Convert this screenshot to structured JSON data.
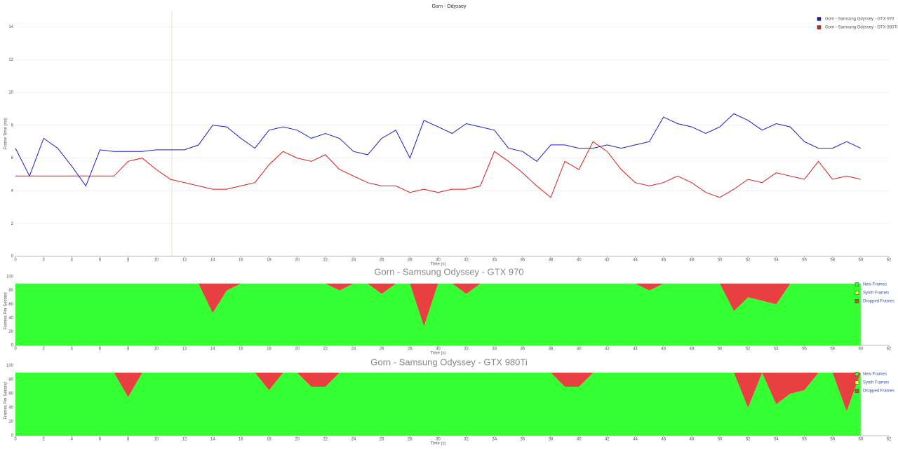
{
  "chart_data": [
    {
      "type": "line",
      "title": "Gorn - Odyssey",
      "x_label": "Time (s)",
      "y_label": "Frame Time (ms)",
      "x": [
        0,
        1,
        2,
        3,
        4,
        5,
        6,
        7,
        8,
        9,
        10,
        11,
        12,
        13,
        14,
        15,
        16,
        17,
        18,
        19,
        20,
        21,
        22,
        23,
        24,
        25,
        26,
        27,
        28,
        29,
        30,
        31,
        32,
        33,
        34,
        35,
        36,
        37,
        38,
        39,
        40,
        41,
        42,
        43,
        44,
        45,
        46,
        47,
        48,
        49,
        50,
        51,
        52,
        53,
        54,
        55,
        56,
        57,
        58,
        59,
        60
      ],
      "series": [
        {
          "name": "Gorn - Samsung Odyssey - GTX 970",
          "color": "#1a1acc",
          "values": [
            6.6,
            4.9,
            7.2,
            6.6,
            5.5,
            4.3,
            6.5,
            6.4,
            6.4,
            6.4,
            6.5,
            6.5,
            6.5,
            6.8,
            8,
            7.9,
            7.2,
            6.6,
            7.7,
            7.9,
            7.7,
            7.2,
            7.5,
            7.2,
            6.4,
            6.2,
            7.2,
            7.7,
            6,
            8.3,
            7.9,
            7.5,
            8.1,
            7.9,
            7.7,
            6.6,
            6.4,
            5.8,
            6.8,
            6.8,
            6.6,
            6.6,
            6.8,
            6.6,
            6.8,
            7,
            8.5,
            8.1,
            7.9,
            7.5,
            7.9,
            8.7,
            8.3,
            7.7,
            8.1,
            7.9,
            7,
            6.6,
            6.6,
            7,
            6.6
          ]
        },
        {
          "name": "Gorn - Samsung Odyssey - GTX 980Ti",
          "color": "#dd1a1a",
          "values": [
            4.9,
            4.9,
            4.9,
            4.9,
            4.9,
            4.9,
            4.9,
            4.9,
            5.8,
            6,
            5.3,
            4.7,
            4.5,
            4.3,
            4.1,
            4.1,
            4.3,
            4.5,
            5.6,
            6.4,
            6,
            5.8,
            6.2,
            5.3,
            4.9,
            4.5,
            4.3,
            4.3,
            3.9,
            4.1,
            3.9,
            4.1,
            4.1,
            4.3,
            6.4,
            5.8,
            5.1,
            4.3,
            3.6,
            5.8,
            5.3,
            7,
            6.4,
            5.3,
            4.5,
            4.3,
            4.5,
            4.9,
            4.5,
            3.9,
            3.6,
            4.1,
            4.7,
            4.5,
            5.1,
            4.9,
            4.7,
            5.8,
            4.7,
            4.9,
            4.7
          ]
        }
      ],
      "xlim": [
        0,
        62
      ],
      "xticks": [
        0,
        2,
        4,
        6,
        8,
        10,
        12,
        14,
        16,
        18,
        20,
        22,
        24,
        26,
        28,
        30,
        32,
        34,
        36,
        38,
        40,
        42,
        44,
        46,
        48,
        50,
        52,
        54,
        56,
        58,
        60,
        62
      ],
      "ylim": [
        0,
        15
      ],
      "yticks": [
        0,
        2,
        4,
        6,
        8,
        10,
        12,
        14
      ],
      "grid": true
    },
    {
      "type": "stacked-area",
      "title": "Gorn - Samsung Odyssey - GTX 970",
      "x_label": "Time (s)",
      "y_label": "Frames Per Second",
      "x": [
        0,
        1,
        2,
        3,
        4,
        5,
        6,
        7,
        8,
        9,
        10,
        11,
        12,
        13,
        14,
        15,
        16,
        17,
        18,
        19,
        20,
        21,
        22,
        23,
        24,
        25,
        26,
        27,
        28,
        29,
        30,
        31,
        32,
        33,
        34,
        35,
        36,
        37,
        38,
        39,
        40,
        41,
        42,
        43,
        44,
        45,
        46,
        47,
        48,
        49,
        50,
        51,
        52,
        53,
        54,
        55,
        56,
        57,
        58,
        59,
        60
      ],
      "series": [
        {
          "name": "New Frames",
          "color": "#33ff33",
          "values": [
            90,
            90,
            90,
            90,
            90,
            90,
            90,
            90,
            90,
            90,
            90,
            90,
            90,
            90,
            47,
            80,
            90,
            90,
            90,
            90,
            90,
            90,
            90,
            80,
            90,
            90,
            75,
            90,
            90,
            28,
            90,
            90,
            75,
            90,
            90,
            90,
            90,
            90,
            90,
            90,
            90,
            90,
            90,
            90,
            90,
            80,
            90,
            90,
            90,
            90,
            90,
            50,
            70,
            65,
            60,
            90,
            90,
            90,
            90,
            90,
            90
          ]
        },
        {
          "name": "Synth Frames",
          "color": "#ffff33",
          "values": [
            0,
            0,
            0,
            0,
            0,
            0,
            0,
            0,
            0,
            0,
            0,
            0,
            0,
            0,
            0,
            0,
            0,
            0,
            0,
            0,
            0,
            0,
            0,
            0,
            0,
            0,
            0,
            0,
            0,
            0,
            0,
            0,
            0,
            0,
            0,
            0,
            0,
            0,
            0,
            0,
            0,
            0,
            0,
            0,
            0,
            0,
            0,
            0,
            0,
            0,
            0,
            0,
            0,
            0,
            0,
            0,
            0,
            0,
            0,
            0,
            0
          ]
        },
        {
          "name": "Dropped Frames",
          "color": "#e84040",
          "values": [
            0,
            0,
            0,
            0,
            0,
            0,
            0,
            0,
            0,
            0,
            0,
            0,
            0,
            0,
            43,
            10,
            0,
            0,
            0,
            0,
            0,
            0,
            0,
            10,
            0,
            0,
            15,
            0,
            0,
            62,
            0,
            0,
            15,
            0,
            0,
            0,
            0,
            0,
            0,
            0,
            0,
            0,
            0,
            0,
            0,
            10,
            0,
            0,
            0,
            0,
            0,
            40,
            20,
            25,
            30,
            0,
            0,
            0,
            0,
            0,
            0
          ]
        }
      ],
      "xlim": [
        0,
        62
      ],
      "xticks": [
        0,
        2,
        4,
        6,
        8,
        10,
        12,
        14,
        16,
        18,
        20,
        22,
        24,
        26,
        28,
        30,
        32,
        34,
        36,
        38,
        40,
        42,
        44,
        46,
        48,
        50,
        52,
        54,
        56,
        58,
        60,
        62
      ],
      "ylim": [
        0,
        100
      ],
      "yticks": [
        0,
        20,
        40,
        60,
        80,
        100
      ]
    },
    {
      "type": "stacked-area",
      "title": "Gorn - Samsung Odyssey - GTX 980Ti",
      "x_label": "Time (s)",
      "y_label": "Frames Per Second",
      "x": [
        0,
        1,
        2,
        3,
        4,
        5,
        6,
        7,
        8,
        9,
        10,
        11,
        12,
        13,
        14,
        15,
        16,
        17,
        18,
        19,
        20,
        21,
        22,
        23,
        24,
        25,
        26,
        27,
        28,
        29,
        30,
        31,
        32,
        33,
        34,
        35,
        36,
        37,
        38,
        39,
        40,
        41,
        42,
        43,
        44,
        45,
        46,
        47,
        48,
        49,
        50,
        51,
        52,
        53,
        54,
        55,
        56,
        57,
        58,
        59,
        60
      ],
      "series": [
        {
          "name": "New Frames",
          "color": "#33ff33",
          "values": [
            90,
            90,
            90,
            90,
            90,
            90,
            90,
            90,
            55,
            90,
            90,
            90,
            90,
            90,
            90,
            90,
            90,
            90,
            65,
            90,
            90,
            70,
            70,
            90,
            90,
            90,
            90,
            90,
            90,
            90,
            90,
            90,
            90,
            90,
            90,
            90,
            90,
            90,
            90,
            70,
            70,
            90,
            90,
            90,
            90,
            90,
            90,
            90,
            90,
            90,
            90,
            90,
            40,
            90,
            45,
            60,
            65,
            90,
            90,
            35,
            90
          ]
        },
        {
          "name": "Synth Frames",
          "color": "#ffff33",
          "values": [
            0,
            0,
            0,
            0,
            0,
            0,
            0,
            0,
            0,
            0,
            0,
            0,
            0,
            0,
            0,
            0,
            0,
            0,
            0,
            0,
            0,
            0,
            0,
            0,
            0,
            0,
            0,
            0,
            0,
            0,
            0,
            0,
            0,
            0,
            0,
            0,
            0,
            0,
            0,
            0,
            0,
            0,
            0,
            0,
            0,
            0,
            0,
            0,
            0,
            0,
            0,
            0,
            0,
            0,
            0,
            0,
            0,
            0,
            0,
            0,
            0
          ]
        },
        {
          "name": "Dropped Frames",
          "color": "#e84040",
          "values": [
            0,
            0,
            0,
            0,
            0,
            0,
            0,
            0,
            35,
            0,
            0,
            0,
            0,
            0,
            0,
            0,
            0,
            0,
            25,
            0,
            0,
            20,
            20,
            0,
            0,
            0,
            0,
            0,
            0,
            0,
            0,
            0,
            0,
            0,
            0,
            0,
            0,
            0,
            0,
            20,
            20,
            0,
            0,
            0,
            0,
            0,
            0,
            0,
            0,
            0,
            0,
            0,
            50,
            0,
            45,
            30,
            25,
            0,
            0,
            55,
            0
          ]
        }
      ],
      "xlim": [
        0,
        62
      ],
      "xticks": [
        0,
        2,
        4,
        6,
        8,
        10,
        12,
        14,
        16,
        18,
        20,
        22,
        24,
        26,
        28,
        30,
        32,
        34,
        36,
        38,
        40,
        42,
        44,
        46,
        48,
        50,
        52,
        54,
        56,
        58,
        60,
        62
      ],
      "ylim": [
        0,
        100
      ],
      "yticks": [
        0,
        20,
        40,
        60,
        80,
        100
      ]
    }
  ]
}
